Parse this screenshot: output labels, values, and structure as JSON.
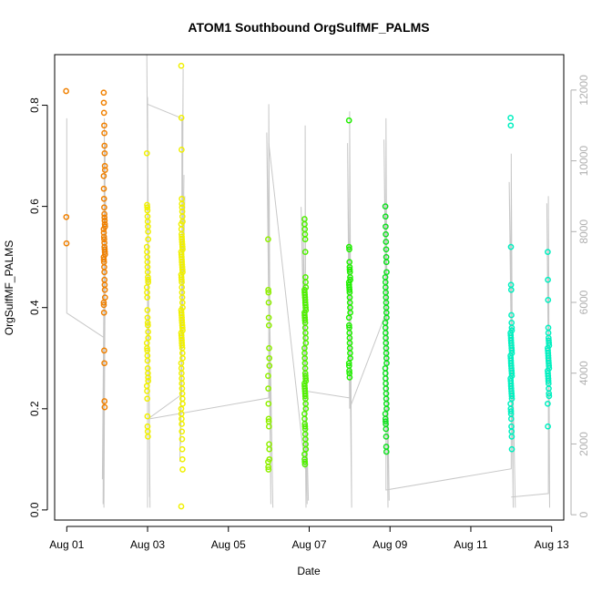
{
  "chart_data": {
    "type": "scatter",
    "title": "ATOM1 Southbound OrgSulfMF_PALMS",
    "xlabel": "Date",
    "ylabel": "OrgSulfMF_PALMS",
    "x_ticks": [
      "Aug 01",
      "Aug 03",
      "Aug 05",
      "Aug 07",
      "Aug 09",
      "Aug 11",
      "Aug 13"
    ],
    "x_range_days": [
      -0.3,
      12.3
    ],
    "ylim": [
      -0.02,
      0.9
    ],
    "y_ticks": [
      0.0,
      0.2,
      0.4,
      0.6,
      0.8
    ],
    "right_axis": {
      "label": "",
      "ticks": [
        0,
        2000,
        4000,
        6000,
        8000,
        10000,
        12000
      ],
      "ylim": [
        -150,
        13000
      ],
      "color": "#b0b0b0"
    },
    "grid": false,
    "legend": "none",
    "point_color_scale": [
      "#FF8000",
      "#FFD000",
      "#FFFF00",
      "#C8FF00",
      "#80FF00",
      "#20FF00",
      "#00FF60",
      "#00FFC0"
    ],
    "series": [
      {
        "x": 0.0,
        "y": [
          0.828,
          0.579,
          0.527
        ],
        "color": "#F08000"
      },
      {
        "x": 0.93,
        "y": [
          0.825,
          0.805,
          0.785,
          0.76,
          0.745,
          0.72,
          0.705,
          0.68,
          0.672,
          0.66,
          0.635,
          0.615,
          0.598,
          0.585,
          0.578,
          0.572,
          0.565,
          0.56,
          0.555,
          0.548,
          0.54,
          0.535,
          0.528,
          0.52,
          0.515,
          0.51,
          0.505,
          0.5,
          0.495,
          0.49,
          0.48,
          0.47,
          0.455,
          0.445,
          0.435,
          0.42,
          0.41,
          0.405,
          0.39,
          0.315,
          0.29,
          0.215,
          0.203
        ],
        "color": "#F08000"
      },
      {
        "x": 2.0,
        "y": [
          0.705,
          0.603,
          0.598,
          0.592,
          0.58,
          0.57,
          0.56,
          0.55,
          0.535,
          0.52,
          0.51,
          0.5,
          0.49,
          0.48,
          0.47,
          0.46,
          0.455,
          0.45,
          0.44,
          0.43,
          0.42,
          0.395,
          0.38,
          0.37,
          0.365,
          0.352,
          0.34,
          0.33,
          0.32,
          0.315,
          0.305,
          0.295,
          0.28,
          0.27,
          0.262,
          0.255,
          0.245,
          0.235,
          0.22,
          0.185,
          0.165,
          0.155,
          0.145
        ],
        "color": "#F0F000"
      },
      {
        "x": 2.85,
        "y": [
          0.878,
          0.775,
          0.712,
          0.615,
          0.605,
          0.598,
          0.59,
          0.58,
          0.57,
          0.565,
          0.555,
          0.545,
          0.54,
          0.535,
          0.53,
          0.525,
          0.52,
          0.515,
          0.51,
          0.505,
          0.5,
          0.495,
          0.49,
          0.485,
          0.48,
          0.475,
          0.47,
          0.465,
          0.46,
          0.455,
          0.45,
          0.44,
          0.43,
          0.42,
          0.41,
          0.4,
          0.395,
          0.39,
          0.385,
          0.38,
          0.375,
          0.37,
          0.365,
          0.36,
          0.355,
          0.35,
          0.345,
          0.34,
          0.335,
          0.33,
          0.325,
          0.32,
          0.31,
          0.3,
          0.29,
          0.28,
          0.27,
          0.26,
          0.25,
          0.24,
          0.23,
          0.22,
          0.21,
          0.2,
          0.19,
          0.18,
          0.17,
          0.155,
          0.14,
          0.12,
          0.1,
          0.08,
          0.007
        ],
        "color": "#F0F000"
      },
      {
        "x": 5.0,
        "y": [
          0.535,
          0.435,
          0.43,
          0.41,
          0.38,
          0.365,
          0.32,
          0.3,
          0.285,
          0.265,
          0.24,
          0.21,
          0.18,
          0.175,
          0.165,
          0.13,
          0.12,
          0.1,
          0.095,
          0.085,
          0.08
        ],
        "color": "#90F000"
      },
      {
        "x": 5.9,
        "y": [
          0.575,
          0.565,
          0.555,
          0.545,
          0.535,
          0.51,
          0.46,
          0.45,
          0.44,
          0.435,
          0.43,
          0.425,
          0.42,
          0.415,
          0.41,
          0.405,
          0.4,
          0.395,
          0.39,
          0.385,
          0.38,
          0.375,
          0.37,
          0.36,
          0.35,
          0.34,
          0.33,
          0.32,
          0.31,
          0.3,
          0.29,
          0.28,
          0.27,
          0.265,
          0.26,
          0.255,
          0.25,
          0.245,
          0.24,
          0.235,
          0.23,
          0.225,
          0.22,
          0.21,
          0.2,
          0.19,
          0.18,
          0.17,
          0.165,
          0.16,
          0.15,
          0.14,
          0.13,
          0.12,
          0.11,
          0.1,
          0.095,
          0.09
        ],
        "color": "#50F000"
      },
      {
        "x": 7.0,
        "y": [
          0.77,
          0.52,
          0.515,
          0.49,
          0.48,
          0.475,
          0.47,
          0.46,
          0.455,
          0.45,
          0.445,
          0.44,
          0.435,
          0.43,
          0.42,
          0.41,
          0.4,
          0.39,
          0.38,
          0.365,
          0.36,
          0.35,
          0.34,
          0.33,
          0.32,
          0.31,
          0.3,
          0.29,
          0.285,
          0.275,
          0.27,
          0.262
        ],
        "color": "#20F000"
      },
      {
        "x": 7.9,
        "y": [
          0.6,
          0.58,
          0.56,
          0.545,
          0.53,
          0.515,
          0.5,
          0.49,
          0.47,
          0.46,
          0.45,
          0.44,
          0.43,
          0.42,
          0.41,
          0.4,
          0.39,
          0.38,
          0.37,
          0.36,
          0.35,
          0.34,
          0.33,
          0.32,
          0.31,
          0.3,
          0.29,
          0.28,
          0.27,
          0.26,
          0.25,
          0.24,
          0.23,
          0.22,
          0.21,
          0.2,
          0.19,
          0.18,
          0.175,
          0.17,
          0.16,
          0.145,
          0.125,
          0.115
        ],
        "color": "#10E020"
      },
      {
        "x": 11.0,
        "y": [
          0.775,
          0.76,
          0.52,
          0.445,
          0.435,
          0.385,
          0.37,
          0.36,
          0.355,
          0.35,
          0.345,
          0.34,
          0.335,
          0.33,
          0.325,
          0.32,
          0.315,
          0.31,
          0.305,
          0.3,
          0.295,
          0.29,
          0.285,
          0.28,
          0.275,
          0.27,
          0.265,
          0.26,
          0.255,
          0.25,
          0.245,
          0.24,
          0.235,
          0.23,
          0.225,
          0.22,
          0.21,
          0.2,
          0.195,
          0.19,
          0.18,
          0.165,
          0.155,
          0.145,
          0.12
        ],
        "color": "#00F0C0"
      },
      {
        "x": 11.92,
        "y": [
          0.51,
          0.455,
          0.415,
          0.36,
          0.35,
          0.34,
          0.335,
          0.33,
          0.325,
          0.32,
          0.315,
          0.31,
          0.305,
          0.3,
          0.295,
          0.29,
          0.285,
          0.28,
          0.275,
          0.27,
          0.265,
          0.26,
          0.255,
          0.25,
          0.24,
          0.23,
          0.225,
          0.21,
          0.165
        ],
        "color": "#00F0C0"
      }
    ],
    "altitude_trace": {
      "axis": "right",
      "color": "#c8c8c8",
      "segments": [
        {
          "x": [
            0.0,
            0.0,
            0.93,
            0.93,
            0.9,
            0.95,
            0.88,
            0.96,
            0.92
          ],
          "y": [
            11200,
            5700,
            5000,
            11200,
            300,
            10500,
            1000,
            9000,
            200
          ]
        },
        {
          "x": [
            2.0,
            2.0,
            2.05,
            1.98,
            2.06
          ],
          "y": [
            200,
            11800,
            500,
            13000,
            200
          ]
        },
        {
          "x": [
            2.0,
            2.85,
            2.85,
            2.88,
            2.82,
            2.9,
            2.8,
            2.92
          ],
          "y": [
            11600,
            11200,
            3400,
            12600,
            2000,
            9600,
            1500,
            9000
          ]
        },
        {
          "x": [
            2.85,
            2.0,
            5.0,
            5.0,
            5.05,
            4.95,
            5.1
          ],
          "y": [
            3400,
            2700,
            3300,
            11600,
            300,
            10800,
            200
          ]
        },
        {
          "x": [
            5.0,
            5.9,
            5.9,
            5.92,
            5.85,
            5.95,
            5.8,
            5.98
          ],
          "y": [
            10500,
            1300,
            11000,
            200,
            8400,
            300,
            8700,
            400
          ]
        },
        {
          "x": [
            5.9,
            7.0,
            7.0,
            7.05,
            6.95,
            7.0
          ],
          "y": [
            3500,
            3300,
            11400,
            200,
            10500,
            3000
          ]
        },
        {
          "x": [
            7.0,
            7.9,
            7.9,
            7.95,
            7.85,
            7.98
          ],
          "y": [
            3000,
            5700,
            11200,
            200,
            10600,
            400
          ]
        },
        {
          "x": [
            7.9,
            7.9,
            11.0,
            11.0,
            11.05,
            10.95,
            11.1
          ],
          "y": [
            3000,
            700,
            1300,
            10200,
            200,
            9400,
            200
          ]
        },
        {
          "x": [
            11.0,
            11.92,
            11.92,
            11.95,
            11.88
          ],
          "y": [
            500,
            600,
            9000,
            200,
            8800
          ]
        }
      ]
    }
  }
}
